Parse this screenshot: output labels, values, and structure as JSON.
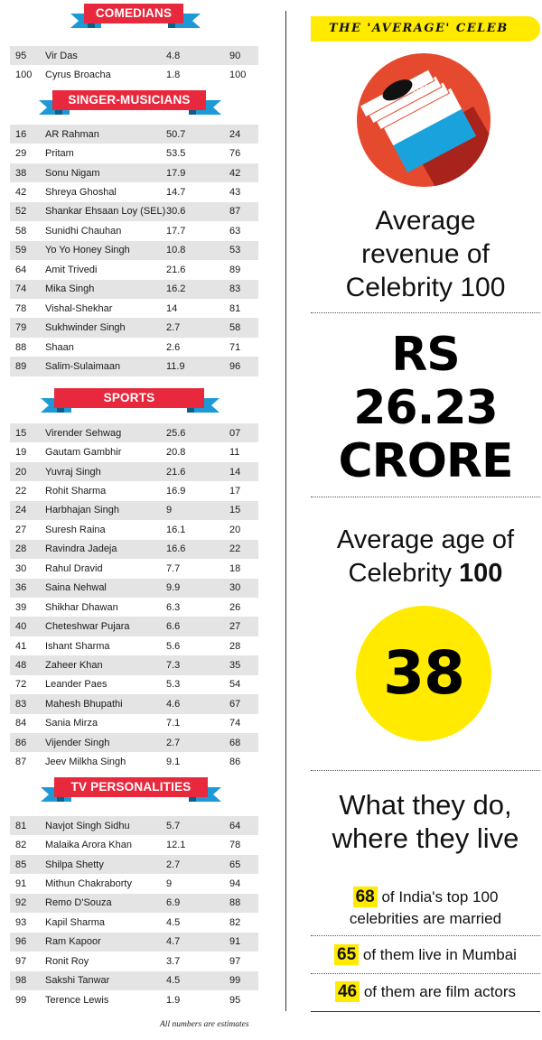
{
  "sections": [
    {
      "title": "COMEDIANS",
      "rows": [
        {
          "rank": "95",
          "name": "Vir Das",
          "value": "4.8",
          "rev": "90"
        },
        {
          "rank": "100",
          "name": "Cyrus Broacha",
          "value": "1.8",
          "rev": "100"
        }
      ]
    },
    {
      "title": "SINGER-MUSICIANS",
      "rows": [
        {
          "rank": "16",
          "name": "AR Rahman",
          "value": "50.7",
          "rev": "24"
        },
        {
          "rank": "29",
          "name": "Pritam",
          "value": "53.5",
          "rev": "76"
        },
        {
          "rank": "38",
          "name": "Sonu Nigam",
          "value": "17.9",
          "rev": "42"
        },
        {
          "rank": "42",
          "name": "Shreya Ghoshal",
          "value": "14.7",
          "rev": "43"
        },
        {
          "rank": "52",
          "name": "Shankar Ehsaan Loy (SEL)",
          "value": "30.6",
          "rev": "87"
        },
        {
          "rank": "58",
          "name": "Sunidhi Chauhan",
          "value": "17.7",
          "rev": "63"
        },
        {
          "rank": "59",
          "name": "Yo Yo Honey Singh",
          "value": "10.8",
          "rev": "53"
        },
        {
          "rank": "64",
          "name": "Amit Trivedi",
          "value": "21.6",
          "rev": "89"
        },
        {
          "rank": "74",
          "name": "Mika Singh",
          "value": "16.2",
          "rev": "83"
        },
        {
          "rank": "78",
          "name": "Vishal-Shekhar",
          "value": "14",
          "rev": "81"
        },
        {
          "rank": "79",
          "name": "Sukhwinder Singh",
          "value": "2.7",
          "rev": "58"
        },
        {
          "rank": "88",
          "name": "Shaan",
          "value": "2.6",
          "rev": "71"
        },
        {
          "rank": "89",
          "name": "Salim-Sulaimaan",
          "value": "11.9",
          "rev": "96"
        }
      ]
    },
    {
      "title": "SPORTS",
      "rows": [
        {
          "rank": "15",
          "name": "Virender Sehwag",
          "value": "25.6",
          "rev": "07"
        },
        {
          "rank": "19",
          "name": "Gautam Gambhir",
          "value": "20.8",
          "rev": "11"
        },
        {
          "rank": "20",
          "name": "Yuvraj Singh",
          "value": "21.6",
          "rev": "14"
        },
        {
          "rank": "22",
          "name": "Rohit Sharma",
          "value": "16.9",
          "rev": "17"
        },
        {
          "rank": "24",
          "name": "Harbhajan Singh",
          "value": "9",
          "rev": "15"
        },
        {
          "rank": "27",
          "name": "Suresh Raina",
          "value": "16.1",
          "rev": "20"
        },
        {
          "rank": "28",
          "name": "Ravindra Jadeja",
          "value": "16.6",
          "rev": "22"
        },
        {
          "rank": "30",
          "name": "Rahul Dravid",
          "value": "7.7",
          "rev": "18"
        },
        {
          "rank": "36",
          "name": "Saina Nehwal",
          "value": "9.9",
          "rev": "30"
        },
        {
          "rank": "39",
          "name": "Shikhar Dhawan",
          "value": "6.3",
          "rev": "26"
        },
        {
          "rank": "40",
          "name": "Cheteshwar Pujara",
          "value": "6.6",
          "rev": "27"
        },
        {
          "rank": "41",
          "name": "Ishant Sharma",
          "value": "5.6",
          "rev": "28"
        },
        {
          "rank": "48",
          "name": "Zaheer Khan",
          "value": "7.3",
          "rev": "35"
        },
        {
          "rank": "72",
          "name": "Leander Paes",
          "value": "5.3",
          "rev": "54"
        },
        {
          "rank": "83",
          "name": "Mahesh Bhupathi",
          "value": "4.6",
          "rev": "67"
        },
        {
          "rank": "84",
          "name": "Sania Mirza",
          "value": "7.1",
          "rev": "74"
        },
        {
          "rank": "86",
          "name": "Vijender Singh",
          "value": "2.7",
          "rev": "68"
        },
        {
          "rank": "87",
          "name": "Jeev Milkha Singh",
          "value": "9.1",
          "rev": "86"
        }
      ]
    },
    {
      "title": "TV PERSONALITIES",
      "rows": [
        {
          "rank": "81",
          "name": "Navjot Singh Sidhu",
          "value": "5.7",
          "rev": "64"
        },
        {
          "rank": "82",
          "name": "Malaika Arora Khan",
          "value": "12.1",
          "rev": "78"
        },
        {
          "rank": "85",
          "name": "Shilpa Shetty",
          "value": "2.7",
          "rev": "65"
        },
        {
          "rank": "91",
          "name": "Mithun Chakraborty",
          "value": "9",
          "rev": "94"
        },
        {
          "rank": "92",
          "name": "Remo D'Souza",
          "value": "6.9",
          "rev": "88"
        },
        {
          "rank": "93",
          "name": "Kapil Sharma",
          "value": "4.5",
          "rev": "82"
        },
        {
          "rank": "96",
          "name": "Ram Kapoor",
          "value": "4.7",
          "rev": "91"
        },
        {
          "rank": "97",
          "name": "Ronit Roy",
          "value": "3.7",
          "rev": "97"
        },
        {
          "rank": "98",
          "name": "Sakshi Tanwar",
          "value": "4.5",
          "rev": "99"
        },
        {
          "rank": "99",
          "name": "Terence Lewis",
          "value": "1.9",
          "rev": "95"
        }
      ]
    }
  ],
  "footnote": "All numbers are estimates",
  "sidebar": {
    "tagline": "THE 'AVERAGE' CELEB",
    "note_label": "100",
    "revenue_label": [
      "Average",
      "revenue of",
      "Celebrity 100"
    ],
    "revenue_value": [
      "RS",
      "26.23",
      "CRORE"
    ],
    "age_label_line1": "Average age of",
    "age_label_line2_prefix": "Celebrity ",
    "age_label_line2_bold": "100",
    "age_value": "38",
    "where_label": [
      "What they do,",
      "where they live"
    ],
    "stats": [
      {
        "num": "68",
        "text": " of India's top 100",
        "text2": "celebrities are married"
      },
      {
        "num": "65",
        "text": " of them live in Mumbai"
      },
      {
        "num": "46",
        "text": " of them are film actors"
      }
    ]
  },
  "colors": {
    "banner_red": "#e8283c",
    "ribbon_blue": "#1d9ad6",
    "highlight_yellow": "#ffea00",
    "row_grey": "#e4e4e5"
  }
}
